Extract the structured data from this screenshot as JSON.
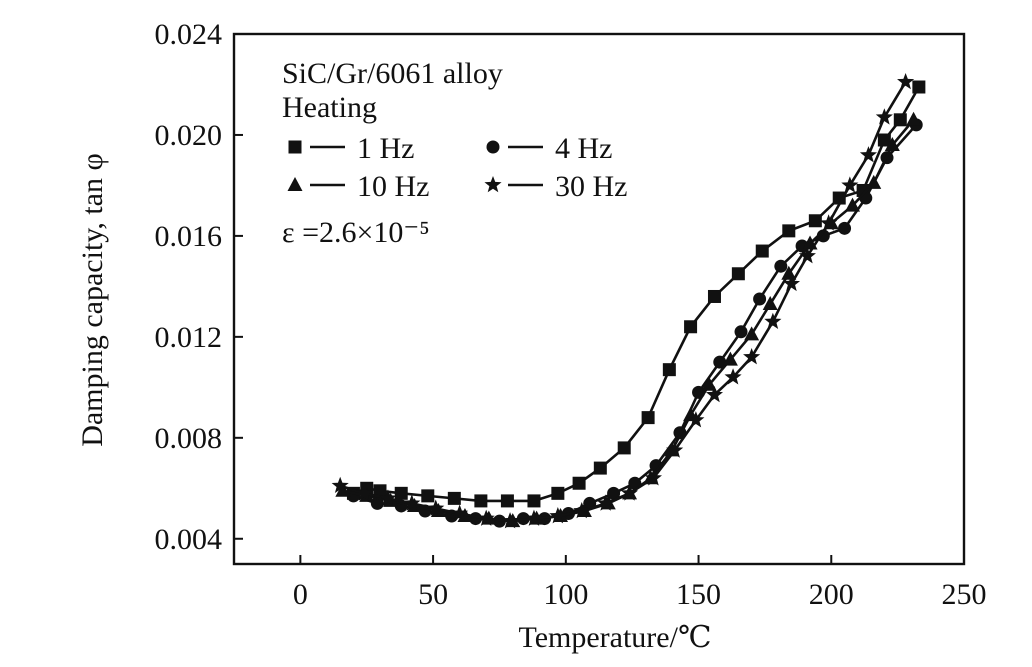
{
  "chart_data": {
    "type": "line",
    "xlabel": "Temperature/℃",
    "ylabel": "Damping capacity, tan φ",
    "xlim": [
      -25,
      250
    ],
    "ylim": [
      0.003,
      0.024
    ],
    "xticks": [
      0,
      50,
      100,
      150,
      200,
      250
    ],
    "yticks": [
      0.004,
      0.008,
      0.012,
      0.016,
      0.02,
      0.024
    ],
    "ytick_labels": [
      "0.004",
      "0.008",
      "0.012",
      "0.016",
      "0.020",
      "0.024"
    ],
    "grid": false,
    "legend_position": "top-left",
    "annotations": [
      "SiC/Gr/6061 alloy",
      "Heating",
      "ε =2.6×10⁻⁵"
    ],
    "series": [
      {
        "name": "1 Hz",
        "marker": "square",
        "x": [
          20,
          25,
          30,
          38,
          48,
          58,
          68,
          78,
          88,
          97,
          105,
          113,
          122,
          131,
          139,
          147,
          156,
          165,
          174,
          184,
          194,
          203,
          212,
          220,
          226,
          233
        ],
        "y": [
          0.0058,
          0.006,
          0.0059,
          0.0058,
          0.0057,
          0.0056,
          0.0055,
          0.0055,
          0.0055,
          0.0058,
          0.0062,
          0.0068,
          0.0076,
          0.0088,
          0.0107,
          0.0124,
          0.0136,
          0.0145,
          0.0154,
          0.0162,
          0.0166,
          0.0175,
          0.0178,
          0.0198,
          0.0206,
          0.0219
        ]
      },
      {
        "name": "4 Hz",
        "marker": "circle",
        "x": [
          20,
          29,
          38,
          47,
          57,
          66,
          75,
          84,
          92,
          101,
          109,
          118,
          126,
          134,
          143,
          150,
          158,
          166,
          173,
          181,
          189,
          197,
          205,
          213,
          221,
          232
        ],
        "y": [
          0.0057,
          0.0054,
          0.0053,
          0.0051,
          0.0049,
          0.0048,
          0.0047,
          0.0048,
          0.0048,
          0.005,
          0.0054,
          0.0058,
          0.0062,
          0.0069,
          0.0082,
          0.0098,
          0.011,
          0.0122,
          0.0135,
          0.0148,
          0.0156,
          0.016,
          0.0163,
          0.0175,
          0.0191,
          0.0204
        ]
      },
      {
        "name": "10 Hz",
        "marker": "triangle",
        "x": [
          16,
          25,
          34,
          43,
          52,
          62,
          71,
          80,
          89,
          98,
          107,
          116,
          124,
          132,
          140,
          147,
          154,
          162,
          170,
          177,
          184,
          192,
          200,
          208,
          216,
          223,
          231
        ],
        "y": [
          0.0059,
          0.0057,
          0.0055,
          0.0053,
          0.0051,
          0.0049,
          0.0048,
          0.0047,
          0.0048,
          0.0049,
          0.0051,
          0.0054,
          0.0058,
          0.0064,
          0.0075,
          0.0089,
          0.0101,
          0.0111,
          0.0121,
          0.0133,
          0.0145,
          0.0157,
          0.0165,
          0.0172,
          0.0181,
          0.0196,
          0.0206
        ]
      },
      {
        "name": "30 Hz",
        "marker": "star",
        "x": [
          15,
          24,
          33,
          42,
          51,
          60,
          70,
          79,
          88,
          97,
          106,
          115,
          124,
          133,
          141,
          149,
          156,
          163,
          170,
          178,
          185,
          191,
          199,
          207,
          214,
          220,
          228
        ],
        "y": [
          0.0061,
          0.0058,
          0.0056,
          0.0054,
          0.0052,
          0.005,
          0.0048,
          0.0047,
          0.0048,
          0.0049,
          0.0051,
          0.0054,
          0.0058,
          0.0064,
          0.0075,
          0.0087,
          0.0097,
          0.0104,
          0.0112,
          0.0126,
          0.0141,
          0.0152,
          0.0165,
          0.018,
          0.0192,
          0.0207,
          0.0221
        ]
      }
    ]
  }
}
